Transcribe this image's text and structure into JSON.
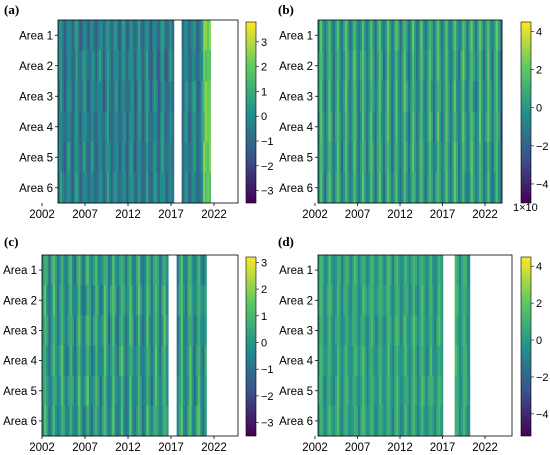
{
  "colormap": [
    "#440154",
    "#3b528b",
    "#21918c",
    "#5ec962",
    "#fde725"
  ],
  "chart_data": [
    {
      "panel": "(a)",
      "type": "heatmap",
      "colormap": "viridis",
      "x_ticks": [
        "2002",
        "2007",
        "2012",
        "2017",
        "2022"
      ],
      "x_range": [
        2002,
        2025
      ],
      "y_categories": [
        "Area 1",
        "Area 2",
        "Area 3",
        "Area 4",
        "Area 5",
        "Area 6"
      ],
      "colorbar": {
        "min": -3.5,
        "max": 3.8,
        "ticks": [
          3,
          2,
          1,
          0,
          -1,
          -2,
          -3
        ],
        "tick_labels": [
          "3",
          "2",
          "1",
          "0",
          "−1",
          "−2",
          "−3"
        ],
        "scale_label": ""
      },
      "data_spans": [
        [
          2002,
          2016.8
        ],
        [
          2017.8,
          2021.5
        ]
      ],
      "blank_after": 2021.5,
      "base_level": -0.4,
      "stripe_amplitude": 0.8,
      "bright_after": 2020.5,
      "bright_level": 2.0
    },
    {
      "panel": "(b)",
      "type": "heatmap",
      "colormap": "viridis",
      "x_ticks": [
        "2002",
        "2007",
        "2012",
        "2017",
        "2022"
      ],
      "x_range": [
        2002,
        2024
      ],
      "y_categories": [
        "Area 1",
        "Area 2",
        "Area 3",
        "Area 4",
        "Area 5",
        "Area 6"
      ],
      "colorbar": {
        "min": -5,
        "max": 4.5,
        "ticks": [
          4,
          2,
          0,
          -2,
          -4
        ],
        "tick_labels": [
          "4",
          "2",
          "0",
          "−2",
          "−4"
        ],
        "scale_label": "1×10"
      },
      "data_spans": [
        [
          2002,
          2024
        ]
      ],
      "blank_after": null,
      "base_level": 0.2,
      "stripe_amplitude": 1.6,
      "bright_after": null,
      "bright_level": 0
    },
    {
      "panel": "(c)",
      "type": "heatmap",
      "colormap": "viridis",
      "x_ticks": [
        "2002",
        "2007",
        "2012",
        "2017",
        "2022"
      ],
      "x_range": [
        2002,
        2025
      ],
      "y_categories": [
        "Area 1",
        "Area 2",
        "Area 3",
        "Area 4",
        "Area 5",
        "Area 6"
      ],
      "colorbar": {
        "min": -3.5,
        "max": 3.2,
        "ticks": [
          3,
          2,
          1,
          0,
          -1,
          -2,
          -3
        ],
        "tick_labels": [
          "3",
          "2",
          "1",
          "0",
          "−1",
          "−2",
          "−3"
        ],
        "scale_label": ""
      },
      "data_spans": [
        [
          2002,
          2016.8
        ],
        [
          2017.8,
          2021.3
        ]
      ],
      "blank_after": 2021.3,
      "base_level": 0.1,
      "stripe_amplitude": 1.0,
      "bright_after": null,
      "bright_level": 0
    },
    {
      "panel": "(d)",
      "type": "heatmap",
      "colormap": "viridis",
      "x_ticks": [
        "2002",
        "2007",
        "2012",
        "2017",
        "2022"
      ],
      "x_range": [
        2002,
        2025
      ],
      "y_categories": [
        "Area 1",
        "Area 2",
        "Area 3",
        "Area 4",
        "Area 5",
        "Area 6"
      ],
      "colorbar": {
        "min": -5.2,
        "max": 4.5,
        "ticks": [
          4,
          2,
          0,
          -2,
          -4
        ],
        "tick_labels": [
          "4",
          "2",
          "0",
          "−2",
          "−4"
        ],
        "scale_label": ""
      },
      "data_spans": [
        [
          2002,
          2016.8
        ],
        [
          2018.2,
          2020
        ]
      ],
      "blank_after": 2020,
      "base_level": 0.3,
      "stripe_amplitude": 1.0,
      "bright_after": null,
      "bright_level": 0
    }
  ]
}
